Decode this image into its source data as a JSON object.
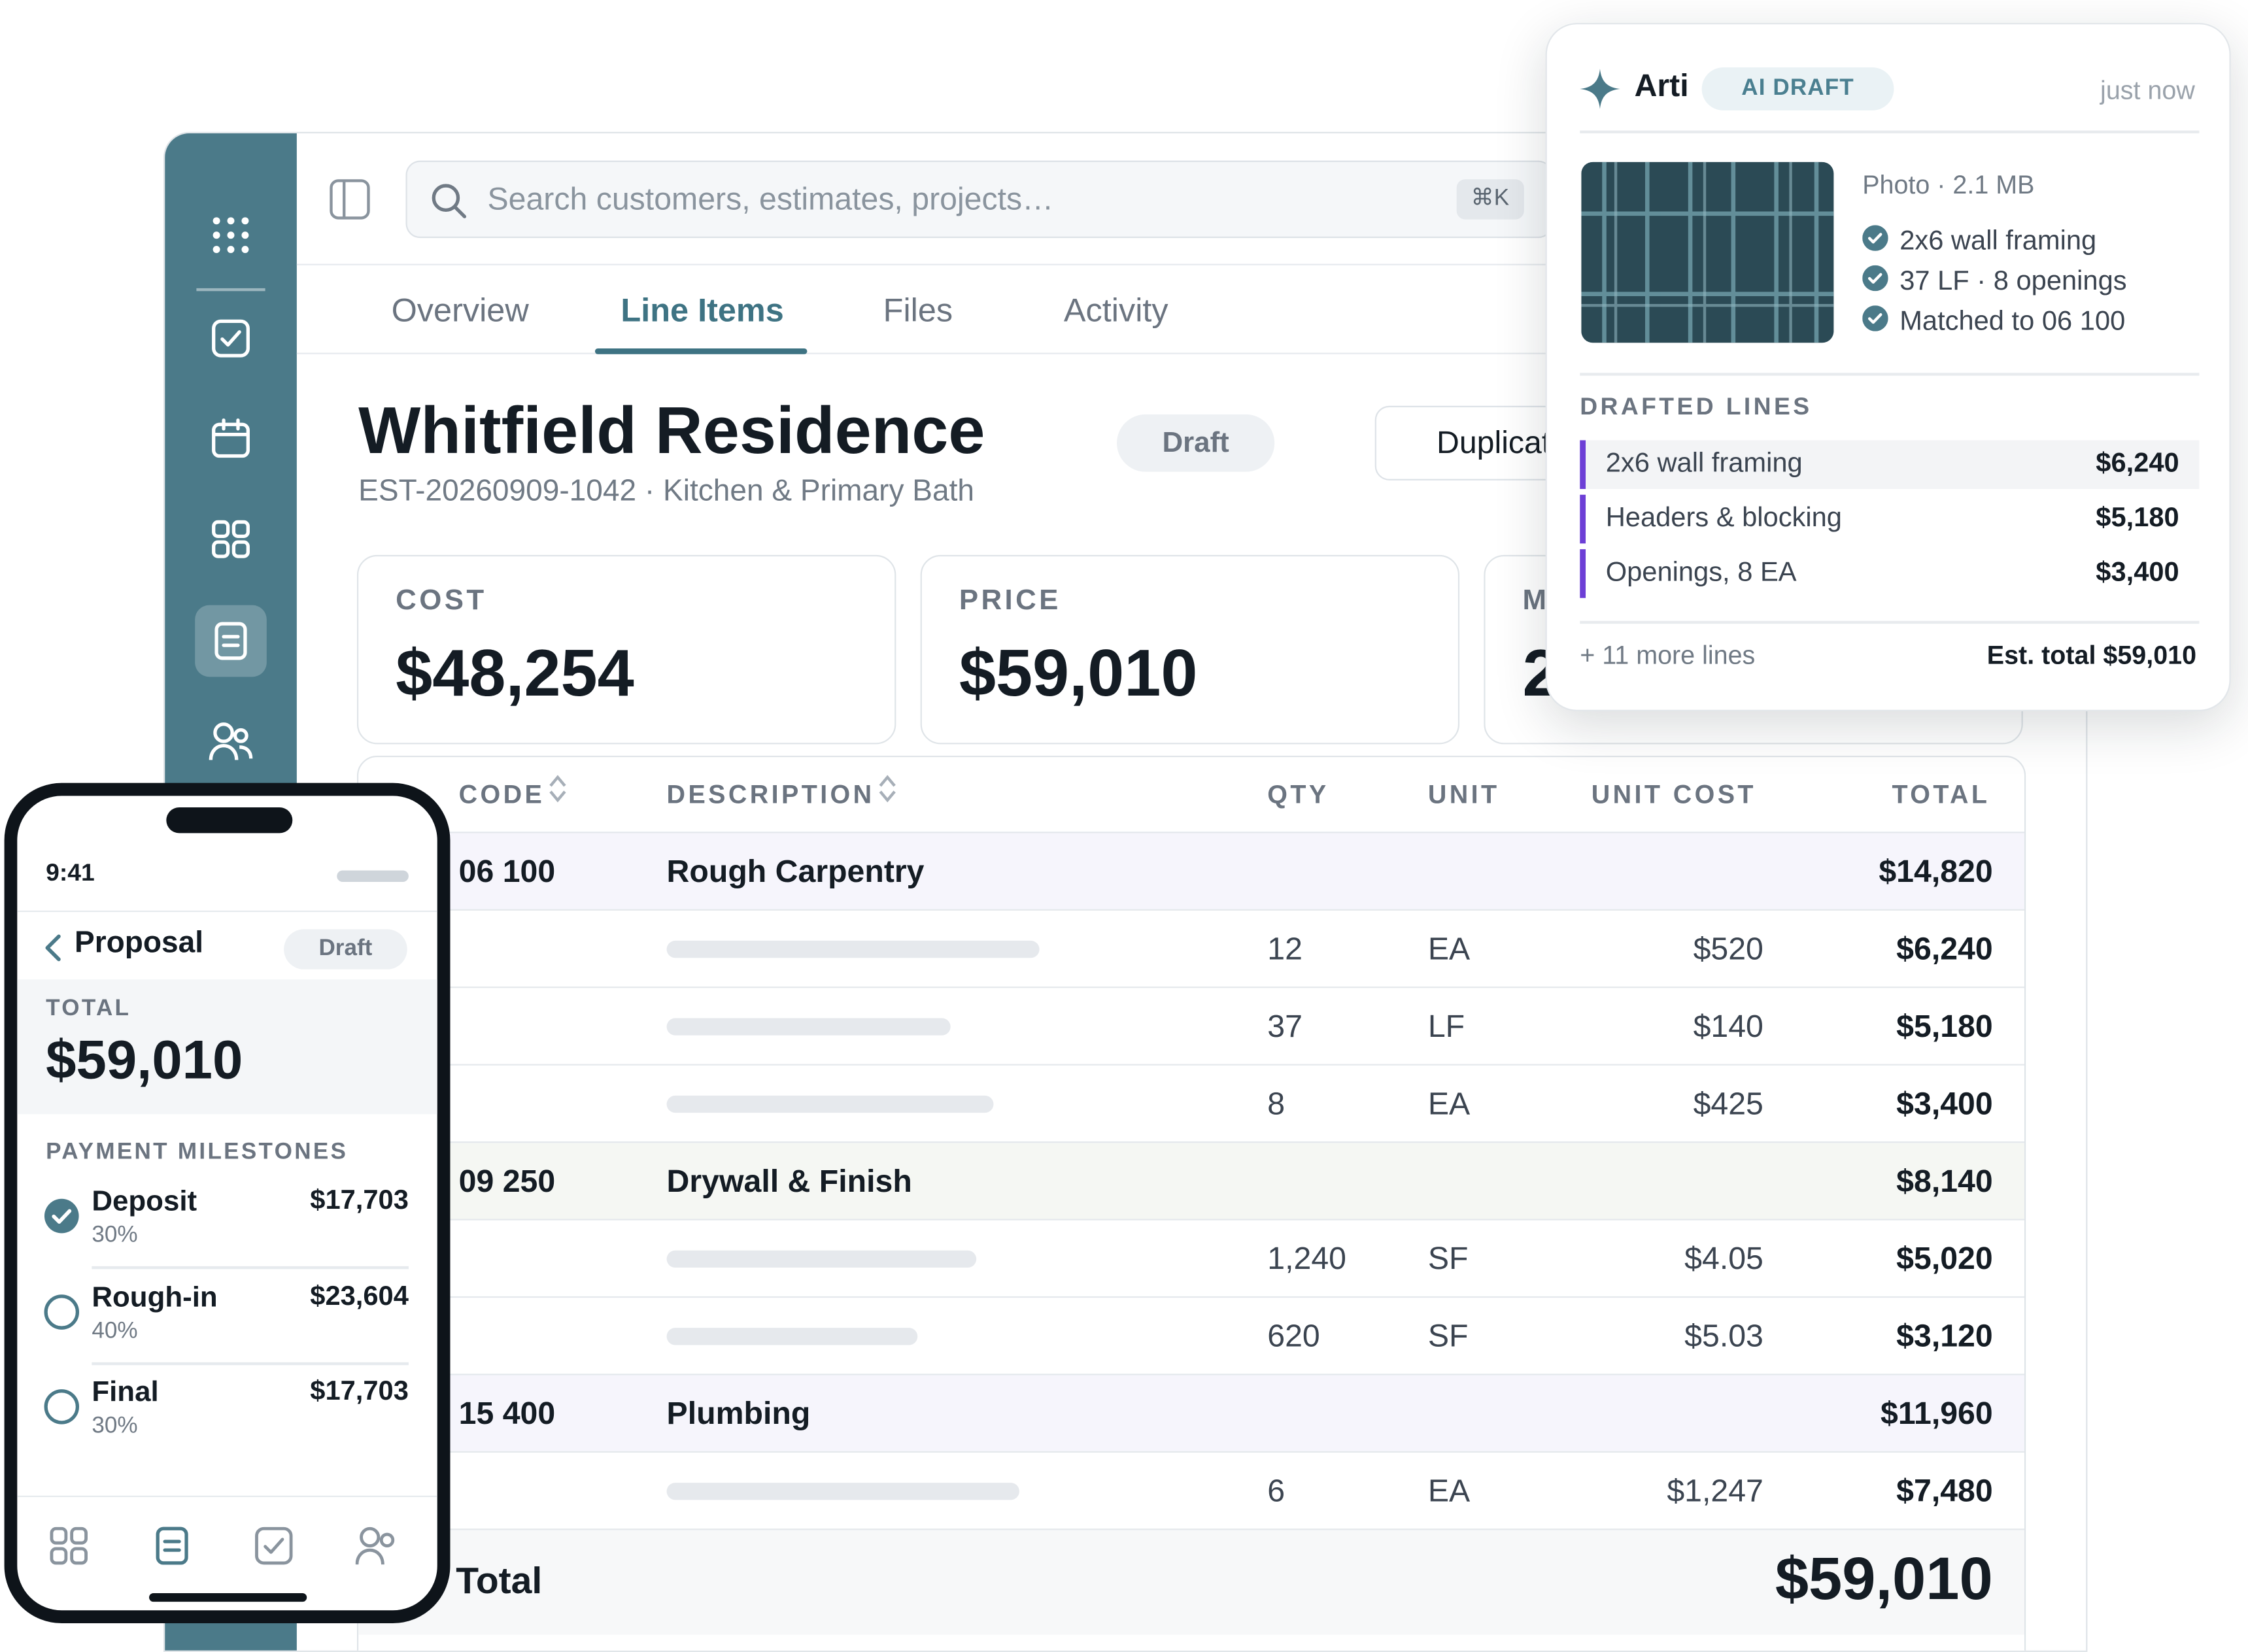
{
  "search": {
    "placeholder": "Search customers, estimates, projects…",
    "shortcut": "⌘K"
  },
  "tabs": [
    {
      "label": "Overview",
      "active": false
    },
    {
      "label": "Line Items",
      "active": true
    },
    {
      "label": "Files",
      "active": false
    },
    {
      "label": "Activity",
      "active": false
    }
  ],
  "estimate": {
    "title": "Whitfield Residence",
    "subtitle": "EST-20260909-1042 · Kitchen & Primary Bath",
    "status": "Draft",
    "duplicate_label": "Duplicate"
  },
  "kpis": [
    {
      "label": "COST",
      "value": "$48,254"
    },
    {
      "label": "PRICE",
      "value": "$59,010"
    },
    {
      "label": "M",
      "value": "2"
    }
  ],
  "table": {
    "columns": {
      "code": "CODE",
      "description": "DESCRIPTION",
      "qty": "QTY",
      "unit": "UNIT",
      "unit_cost": "UNIT COST",
      "total": "TOTAL"
    },
    "groups": [
      {
        "code": "06 100",
        "name": "Rough Carpentry",
        "total": "$14,820",
        "lines": [
          {
            "qty": "12",
            "unit": "EA",
            "unit_cost": "$520",
            "total": "$6,240"
          },
          {
            "qty": "37",
            "unit": "LF",
            "unit_cost": "$140",
            "total": "$5,180"
          },
          {
            "qty": "8",
            "unit": "EA",
            "unit_cost": "$425",
            "total": "$3,400"
          }
        ]
      },
      {
        "code": "09 250",
        "name": "Drywall & Finish",
        "total": "$8,140",
        "lines": [
          {
            "qty": "1,240",
            "unit": "SF",
            "unit_cost": "$4.05",
            "total": "$5,020"
          },
          {
            "qty": "620",
            "unit": "SF",
            "unit_cost": "$5.03",
            "total": "$3,120"
          }
        ]
      },
      {
        "code": "15 400",
        "name": "Plumbing",
        "total": "$11,960",
        "lines": [
          {
            "qty": "6",
            "unit": "EA",
            "unit_cost": "$1,247",
            "total": "$7,480"
          }
        ]
      }
    ],
    "total_label": "Total",
    "total_value": "$59,010"
  },
  "ai_popup": {
    "name": "Arti",
    "badge": "AI DRAFT",
    "time": "just now",
    "photo_meta": "Photo · 2.1 MB",
    "checks": [
      "2x6 wall framing",
      "37 LF · 8 openings",
      "Matched to 06 100"
    ],
    "section_title": "DRAFTED LINES",
    "lines": [
      {
        "label": "2x6 wall framing",
        "value": "$6,240"
      },
      {
        "label": "Headers & blocking",
        "value": "$5,180"
      },
      {
        "label": "Openings, 8 EA",
        "value": "$3,400"
      }
    ],
    "more": "+ 11 more lines",
    "est_total": "Est. total $59,010",
    "accent": "#6d3fd6"
  },
  "phone": {
    "time": "9:41",
    "title": "Proposal",
    "status": "Draft",
    "total_label": "TOTAL",
    "total_value": "$59,010",
    "milestones_title": "PAYMENT MILESTONES",
    "milestones": [
      {
        "name": "Deposit",
        "percent": "30%",
        "amount": "$17,703",
        "done": true
      },
      {
        "name": "Rough-in",
        "percent": "40%",
        "amount": "$23,604",
        "done": false
      },
      {
        "name": "Final",
        "percent": "30%",
        "amount": "$17,703",
        "done": false
      }
    ]
  },
  "colors": {
    "rail": "#4b7a89",
    "accent": "#3e7383",
    "ai_line": "#6d3fd6"
  },
  "icons": {
    "rail": [
      "apps-grid-icon",
      "checkbox-icon",
      "calendar-icon",
      "dashboard-icon",
      "document-icon",
      "users-icon"
    ]
  }
}
